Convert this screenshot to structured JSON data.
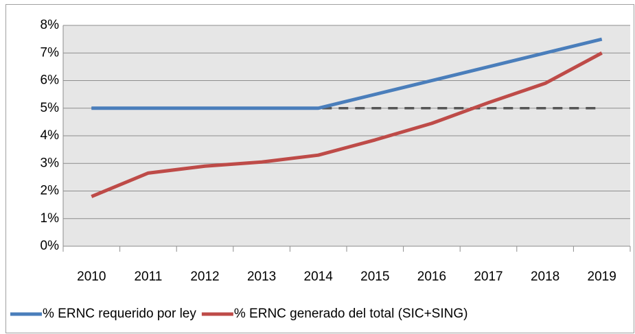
{
  "chart_data": {
    "type": "line",
    "categories": [
      "2010",
      "2011",
      "2012",
      "2013",
      "2014",
      "2015",
      "2016",
      "2017",
      "2018",
      "2019"
    ],
    "series": [
      {
        "name": "% ERNC requerido por ley",
        "color": "#4a7ebb",
        "values": [
          5,
          5,
          5,
          5,
          5,
          5.5,
          6,
          6.5,
          7,
          7.5
        ]
      },
      {
        "name": "% ERNC generado del total (SIC+SING)",
        "color": "#be4b48",
        "values": [
          1.8,
          2.65,
          2.9,
          3.05,
          3.3,
          3.85,
          4.45,
          5.2,
          5.9,
          7.0
        ]
      },
      {
        "color": "#555555",
        "dashed": true,
        "values": [
          5,
          5,
          5,
          5,
          5,
          5,
          5,
          5,
          5,
          5
        ]
      }
    ],
    "ylim": [
      0,
      8
    ],
    "yticks": [
      {
        "value": 0,
        "label": "0%"
      },
      {
        "value": 1,
        "label": "1%"
      },
      {
        "value": 2,
        "label": "2%"
      },
      {
        "value": 3,
        "label": "3%"
      },
      {
        "value": 4,
        "label": "4%"
      },
      {
        "value": 5,
        "label": "5%"
      },
      {
        "value": 6,
        "label": "6%"
      },
      {
        "value": 7,
        "label": "7%"
      },
      {
        "value": 8,
        "label": "8%"
      }
    ],
    "grid": true,
    "legend": "bottom"
  }
}
